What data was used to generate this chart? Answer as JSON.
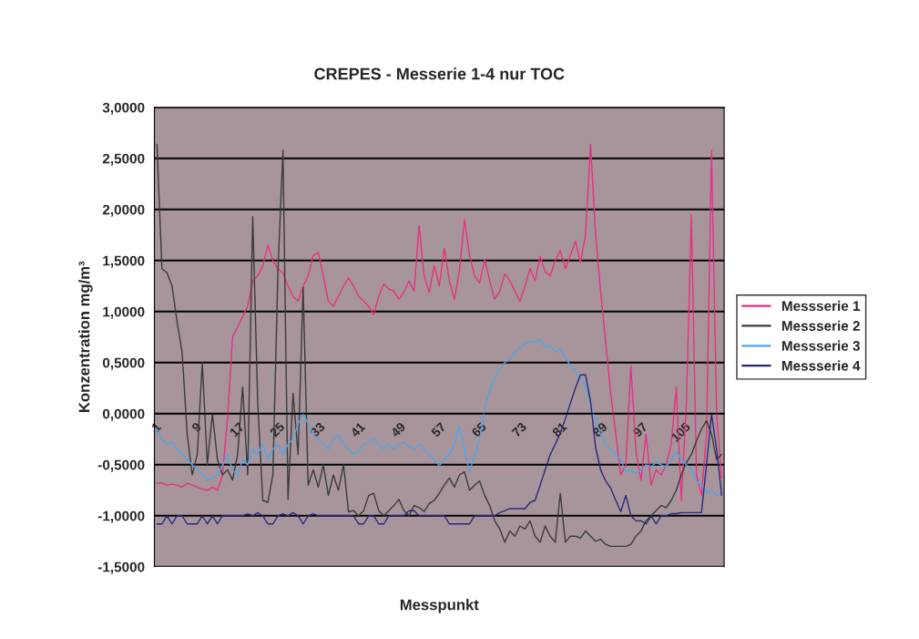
{
  "chart_data": {
    "type": "line",
    "title": "CREPES - Messerie 1-4 nur TOC",
    "xlabel": "Messpunkt",
    "ylabel": "Konzentration mg/m³",
    "categories": [
      "1",
      null,
      null,
      null,
      null,
      null,
      null,
      null,
      "9",
      null,
      null,
      null,
      null,
      null,
      null,
      null,
      "17",
      null,
      null,
      null,
      null,
      null,
      null,
      null,
      "25",
      null,
      null,
      null,
      null,
      null,
      null,
      null,
      "33",
      null,
      null,
      null,
      null,
      null,
      null,
      null,
      "41",
      null,
      null,
      null,
      null,
      null,
      null,
      null,
      "49",
      null,
      null,
      null,
      null,
      null,
      null,
      null,
      "57",
      null,
      null,
      null,
      null,
      null,
      null,
      null,
      "65",
      null,
      null,
      null,
      null,
      null,
      null,
      null,
      "73",
      null,
      null,
      null,
      null,
      null,
      null,
      null,
      "81",
      null,
      null,
      null,
      null,
      null,
      null,
      null,
      "89",
      null,
      null,
      null,
      null,
      null,
      null,
      null,
      "97",
      null,
      null,
      null,
      null,
      null,
      null,
      null,
      "105",
      null,
      null,
      null,
      null,
      null,
      null,
      null,
      null
    ],
    "series": [
      {
        "name": "Messserie 1",
        "color": "#e8317f",
        "values": [
          -0.68,
          -0.68,
          -0.7,
          -0.69,
          -0.7,
          -0.72,
          -0.68,
          -0.7,
          -0.72,
          -0.74,
          -0.75,
          -0.72,
          -0.75,
          -0.6,
          -0.05,
          0.75,
          0.85,
          0.95,
          1.05,
          1.3,
          1.35,
          1.45,
          1.65,
          1.5,
          1.42,
          1.38,
          1.25,
          1.15,
          1.1,
          1.25,
          1.35,
          1.55,
          1.58,
          1.35,
          1.1,
          1.05,
          1.15,
          1.25,
          1.33,
          1.25,
          1.15,
          1.1,
          1.05,
          0.97,
          1.15,
          1.27,
          1.22,
          1.2,
          1.12,
          1.19,
          1.3,
          1.2,
          1.84,
          1.35,
          1.19,
          1.45,
          1.25,
          1.62,
          1.3,
          1.12,
          1.4,
          1.9,
          1.55,
          1.35,
          1.28,
          1.51,
          1.3,
          1.12,
          1.2,
          1.37,
          1.3,
          1.2,
          1.1,
          1.25,
          1.42,
          1.3,
          1.54,
          1.39,
          1.35,
          1.5,
          1.6,
          1.42,
          1.55,
          1.69,
          1.48,
          1.75,
          2.64,
          1.75,
          1.2,
          0.7,
          0.2,
          -0.2,
          -0.6,
          -0.5,
          0.47,
          -0.37,
          -0.65,
          -0.2,
          -0.7,
          -0.55,
          -0.6,
          -0.5,
          -0.3,
          0.26,
          -0.85,
          0.1,
          1.95,
          -0.6,
          -0.8,
          -0.2,
          2.58,
          0.0,
          -0.63
        ]
      },
      {
        "name": "Messserie 2",
        "color": "#3a3a3a",
        "values": [
          2.64,
          1.42,
          1.38,
          1.25,
          0.9,
          0.6,
          -0.2,
          -0.6,
          -0.4,
          0.5,
          -0.5,
          0.0,
          -0.45,
          -0.6,
          -0.55,
          -0.65,
          -0.4,
          0.26,
          -0.6,
          1.93,
          0.1,
          -0.85,
          -0.87,
          -0.6,
          1.4,
          2.58,
          -0.84,
          0.2,
          -0.4,
          1.24,
          -0.7,
          -0.55,
          -0.72,
          -0.5,
          -0.8,
          -0.6,
          -0.75,
          -0.5,
          -0.96,
          -0.95,
          -1.0,
          -0.95,
          -0.8,
          -0.78,
          -0.95,
          -1.0,
          -0.95,
          -0.9,
          -0.84,
          -0.95,
          -1.0,
          -0.9,
          -0.92,
          -0.96,
          -0.88,
          -0.85,
          -0.78,
          -0.7,
          -0.63,
          -0.72,
          -0.6,
          -0.57,
          -0.75,
          -0.7,
          -0.66,
          -0.8,
          -0.9,
          -1.05,
          -1.13,
          -1.26,
          -1.15,
          -1.2,
          -1.1,
          -1.13,
          -1.05,
          -1.2,
          -1.26,
          -1.1,
          -1.2,
          -1.26,
          -0.78,
          -1.26,
          -1.2,
          -1.2,
          -1.22,
          -1.15,
          -1.2,
          -1.25,
          -1.23,
          -1.28,
          -1.3,
          -1.3,
          -1.3,
          -1.3,
          -1.28,
          -1.2,
          -1.15,
          -1.05,
          -1.0,
          -0.95,
          -0.9,
          -0.92,
          -0.85,
          -0.75,
          -0.6,
          -0.48,
          -0.4,
          -0.27,
          -0.15,
          -0.07,
          -0.2,
          -0.45,
          -0.4
        ]
      },
      {
        "name": "Messserie 3",
        "color": "#4da6e8",
        "values": [
          -0.15,
          -0.25,
          -0.3,
          -0.28,
          -0.35,
          -0.4,
          -0.45,
          -0.5,
          -0.55,
          -0.6,
          -0.65,
          -0.63,
          -0.6,
          -0.5,
          -0.4,
          -0.55,
          -0.6,
          -0.45,
          -0.5,
          -0.35,
          -0.4,
          -0.3,
          -0.45,
          -0.35,
          -0.3,
          -0.4,
          -0.3,
          -0.25,
          -0.1,
          0.0,
          -0.1,
          -0.2,
          -0.25,
          -0.3,
          -0.35,
          -0.25,
          -0.21,
          -0.3,
          -0.35,
          -0.4,
          -0.37,
          -0.3,
          -0.28,
          -0.25,
          -0.3,
          -0.35,
          -0.3,
          -0.35,
          -0.3,
          -0.28,
          -0.32,
          -0.35,
          -0.3,
          -0.35,
          -0.4,
          -0.45,
          -0.51,
          -0.45,
          -0.4,
          -0.3,
          -0.12,
          -0.35,
          -0.57,
          -0.4,
          -0.25,
          0.05,
          0.23,
          0.35,
          0.44,
          0.5,
          0.53,
          0.6,
          0.65,
          0.68,
          0.71,
          0.7,
          0.73,
          0.65,
          0.68,
          0.6,
          0.64,
          0.55,
          0.47,
          0.42,
          0.35,
          0.26,
          0.1,
          -0.07,
          -0.2,
          -0.3,
          -0.35,
          -0.4,
          -0.45,
          -0.57,
          -0.55,
          -0.58,
          -0.55,
          -0.5,
          -0.52,
          -0.48,
          -0.5,
          -0.52,
          -0.45,
          -0.37,
          -0.45,
          -0.5,
          -0.55,
          -0.66,
          -0.7,
          -0.78,
          -0.75,
          -0.8,
          -0.78
        ]
      },
      {
        "name": "Messserie 4",
        "color": "#28287a",
        "values": [
          -1.08,
          -1.08,
          -1.0,
          -1.08,
          -1.0,
          -1.0,
          -1.08,
          -1.08,
          -1.08,
          -1.0,
          -1.08,
          -1.0,
          -1.08,
          -1.0,
          -1.0,
          -1.0,
          -1.0,
          -1.0,
          -0.98,
          -1.0,
          -0.97,
          -1.0,
          -1.08,
          -1.08,
          -1.0,
          -0.98,
          -1.0,
          -0.97,
          -1.0,
          -1.08,
          -1.0,
          -0.98,
          -1.0,
          -1.0,
          -1.0,
          -1.0,
          -1.0,
          -1.0,
          -1.0,
          -1.0,
          -1.08,
          -1.08,
          -1.0,
          -1.0,
          -1.08,
          -1.08,
          -1.0,
          -1.0,
          -1.0,
          -1.0,
          -0.95,
          -0.95,
          -1.0,
          -1.0,
          -1.0,
          -1.0,
          -1.0,
          -1.0,
          -1.08,
          -1.08,
          -1.08,
          -1.08,
          -1.08,
          -1.0,
          -1.0,
          -1.0,
          -1.0,
          -1.0,
          -0.97,
          -0.95,
          -0.93,
          -0.93,
          -0.93,
          -0.93,
          -0.87,
          -0.85,
          -0.7,
          -0.55,
          -0.4,
          -0.3,
          -0.19,
          -0.05,
          0.1,
          0.25,
          0.38,
          0.38,
          0.12,
          -0.33,
          -0.55,
          -0.66,
          -0.73,
          -0.85,
          -0.96,
          -0.8,
          -1.0,
          -1.05,
          -1.05,
          -1.08,
          -1.0,
          -1.08,
          -1.0,
          -1.0,
          -0.98,
          -0.98,
          -0.97,
          -0.97,
          -0.97,
          -0.97,
          -0.97,
          -0.5,
          0.0,
          -0.35,
          -0.8
        ]
      }
    ],
    "ylim": [
      -1.5,
      3.0
    ],
    "yticks": [
      {
        "value": -1.5,
        "label": "-1,5000"
      },
      {
        "value": -1.0,
        "label": "-1,0000"
      },
      {
        "value": -0.5,
        "label": "-0,5000"
      },
      {
        "value": 0,
        "label": "0,0000"
      },
      {
        "value": 0.5,
        "label": "0,5000"
      },
      {
        "value": 1.0,
        "label": "1,0000"
      },
      {
        "value": 1.5,
        "label": "1,5000"
      },
      {
        "value": 2.0,
        "label": "2,0000"
      },
      {
        "value": 2.5,
        "label": "2,5000"
      },
      {
        "value": 3.0,
        "label": "3,0000"
      }
    ],
    "grid": "y",
    "legend": "right",
    "marker": "none",
    "line_style": "solid"
  }
}
